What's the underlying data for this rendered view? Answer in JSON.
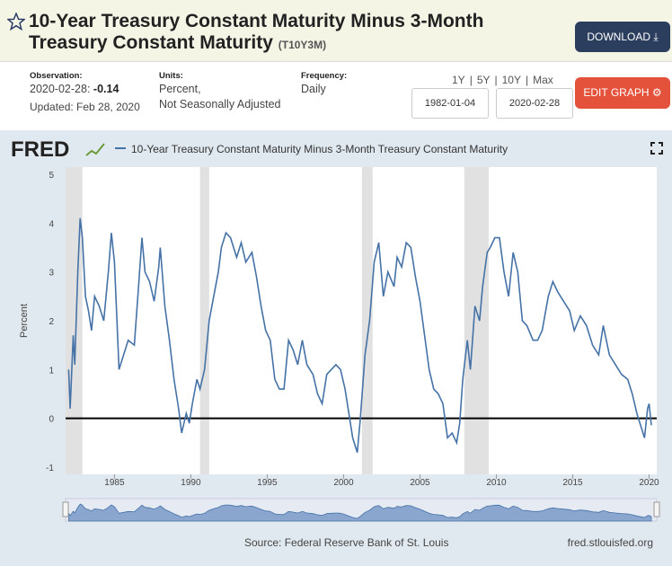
{
  "header": {
    "title": "10-Year Treasury Constant Maturity Minus 3-Month Treasury Constant Maturity",
    "series_id": "(T10Y3M)",
    "download": "DOWNLOAD"
  },
  "info": {
    "observation_label": "Observation:",
    "observation_date": "2020-02-28:",
    "observation_value": -0.14,
    "updated": "Updated: Feb 28, 2020",
    "units_label": "Units:",
    "units_1": "Percent,",
    "units_2": "Not Seasonally Adjusted",
    "frequency_label": "Frequency:",
    "frequency": "Daily",
    "ranges": [
      "1Y",
      "5Y",
      "10Y",
      "Max"
    ],
    "start_date": "1982-01-04",
    "end_date": "2020-02-28",
    "edit": "EDIT GRAPH"
  },
  "chart_data": {
    "type": "line",
    "logo": "FRED",
    "y_label": "Percent",
    "x": [
      1982.0,
      1982.1,
      1982.3,
      1982.4,
      1982.6,
      1982.75,
      1982.9,
      1983.1,
      1983.3,
      1983.5,
      1983.7,
      1984.0,
      1984.3,
      1984.6,
      1984.8,
      1985.0,
      1985.3,
      1985.6,
      1985.9,
      1986.3,
      1986.6,
      1986.8,
      1987.0,
      1987.3,
      1987.6,
      1987.9,
      1988.0,
      1988.3,
      1988.6,
      1988.9,
      1989.2,
      1989.4,
      1989.7,
      1989.9,
      1990.1,
      1990.4,
      1990.6,
      1990.9,
      1991.2,
      1991.5,
      1991.8,
      1992.0,
      1992.3,
      1992.6,
      1993.0,
      1993.3,
      1993.6,
      1994.0,
      1994.3,
      1994.6,
      1994.9,
      1995.2,
      1995.5,
      1995.8,
      1996.1,
      1996.4,
      1996.7,
      1997.0,
      1997.3,
      1997.6,
      1998.0,
      1998.3,
      1998.6,
      1998.9,
      1999.2,
      1999.5,
      1999.8,
      2000.1,
      2000.4,
      2000.6,
      2000.9,
      2001.1,
      2001.4,
      2001.7,
      2002.0,
      2002.3,
      2002.6,
      2002.9,
      2003.3,
      2003.5,
      2003.8,
      2004.1,
      2004.4,
      2004.7,
      2005.0,
      2005.3,
      2005.6,
      2005.9,
      2006.2,
      2006.5,
      2006.8,
      2007.1,
      2007.4,
      2007.6,
      2007.8,
      2008.1,
      2008.3,
      2008.6,
      2008.9,
      2009.1,
      2009.4,
      2009.6,
      2009.9,
      2010.2,
      2010.5,
      2010.8,
      2011.1,
      2011.4,
      2011.7,
      2012.0,
      2012.4,
      2012.7,
      2013.0,
      2013.4,
      2013.7,
      2014.0,
      2014.4,
      2014.8,
      2015.1,
      2015.5,
      2015.9,
      2016.3,
      2016.7,
      2017.0,
      2017.4,
      2017.8,
      2018.2,
      2018.6,
      2018.9,
      2019.2,
      2019.5,
      2019.7,
      2019.9,
      2020.0,
      2020.15
    ],
    "series": [
      {
        "name": "10-Year Treasury Constant Maturity Minus 3-Month Treasury Constant Maturity",
        "color": "#4572a7",
        "values": [
          1.0,
          0.2,
          1.7,
          1.1,
          3.0,
          4.1,
          3.7,
          2.5,
          2.2,
          1.8,
          2.5,
          2.3,
          2.0,
          3.0,
          3.8,
          3.2,
          1.0,
          1.3,
          1.6,
          1.5,
          2.8,
          3.7,
          3.0,
          2.8,
          2.4,
          3.1,
          3.5,
          2.3,
          1.6,
          0.8,
          0.2,
          -0.3,
          0.1,
          -0.1,
          0.3,
          0.8,
          0.6,
          1.0,
          2.0,
          2.5,
          3.0,
          3.5,
          3.8,
          3.7,
          3.3,
          3.6,
          3.2,
          3.4,
          2.9,
          2.3,
          1.8,
          1.6,
          0.8,
          0.6,
          0.6,
          1.6,
          1.4,
          1.1,
          1.6,
          1.1,
          0.9,
          0.5,
          0.3,
          0.9,
          1.0,
          1.1,
          1.0,
          0.6,
          0.0,
          -0.4,
          -0.7,
          0.0,
          1.3,
          2.0,
          3.2,
          3.6,
          2.5,
          3.0,
          2.7,
          3.3,
          3.1,
          3.6,
          3.5,
          2.9,
          2.4,
          1.7,
          1.0,
          0.6,
          0.5,
          0.3,
          -0.4,
          -0.3,
          -0.5,
          -0.1,
          0.8,
          1.6,
          1.0,
          2.3,
          2.0,
          2.7,
          3.4,
          3.5,
          3.7,
          3.7,
          3.0,
          2.5,
          3.4,
          3.0,
          2.0,
          1.9,
          1.6,
          1.6,
          1.8,
          2.5,
          2.8,
          2.6,
          2.4,
          2.2,
          1.8,
          2.1,
          1.9,
          1.5,
          1.3,
          1.9,
          1.3,
          1.1,
          0.9,
          0.8,
          0.5,
          0.1,
          -0.2,
          -0.4,
          0.2,
          0.3,
          -0.14
        ]
      }
    ],
    "xlim": [
      1981.8,
      2020.5
    ],
    "xticks": [
      1985,
      1990,
      1995,
      2000,
      2005,
      2010,
      2015,
      2020
    ],
    "ylim": [
      -1,
      5
    ],
    "yticks": [
      -1,
      0,
      1,
      2,
      3,
      4,
      5
    ],
    "recessions": [
      [
        1981.8,
        1982.9
      ],
      [
        1990.6,
        1991.2
      ],
      [
        2001.2,
        2001.9
      ],
      [
        2007.9,
        2009.5
      ]
    ],
    "source": "Source: Federal Reserve Bank of St. Louis",
    "site": "fred.stlouisfed.org"
  }
}
